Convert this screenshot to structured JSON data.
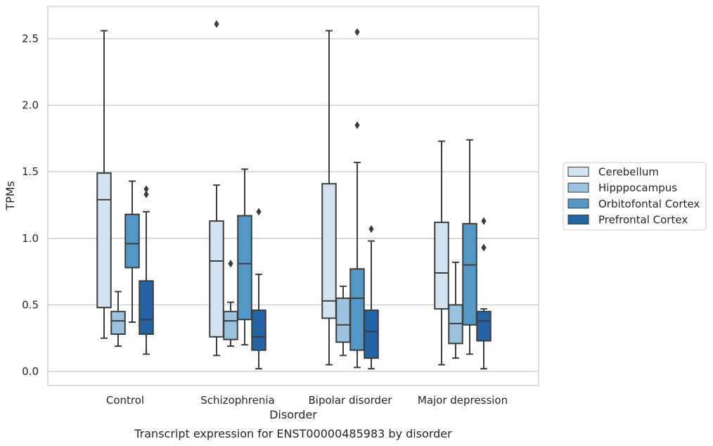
{
  "chart_data": {
    "type": "box",
    "caption": "Transcript expression for ENST00000485983 by disorder",
    "xlabel": "Disorder",
    "ylabel": "TPMs",
    "ylim": [
      -0.1,
      2.75
    ],
    "yticks": [
      0.0,
      0.5,
      1.0,
      1.5,
      2.0,
      2.5
    ],
    "ytick_labels": [
      "0.0",
      "0.5",
      "1.0",
      "1.5",
      "2.0",
      "2.5"
    ],
    "grid": true,
    "legend_position": "right",
    "categories": [
      "Control",
      "Schizophrenia",
      "Bipolar disorder",
      "Major depression"
    ],
    "series": [
      {
        "name": "Cerebellum",
        "color": "#d4e3f1",
        "boxes": [
          {
            "whislo": 0.25,
            "q1": 0.48,
            "med": 1.29,
            "q3": 1.49,
            "whishi": 2.56,
            "fliers": []
          },
          {
            "whislo": 0.12,
            "q1": 0.26,
            "med": 0.83,
            "q3": 1.13,
            "whishi": 1.4,
            "fliers": [
              2.61
            ]
          },
          {
            "whislo": 0.05,
            "q1": 0.4,
            "med": 0.53,
            "q3": 1.41,
            "whishi": 2.56,
            "fliers": []
          },
          {
            "whislo": 0.05,
            "q1": 0.47,
            "med": 0.74,
            "q3": 1.12,
            "whishi": 1.73,
            "fliers": []
          }
        ]
      },
      {
        "name": "Hipppocampus",
        "color": "#99c3de",
        "boxes": [
          {
            "whislo": 0.19,
            "q1": 0.28,
            "med": 0.38,
            "q3": 0.45,
            "whishi": 0.6,
            "fliers": []
          },
          {
            "whislo": 0.19,
            "q1": 0.24,
            "med": 0.38,
            "q3": 0.45,
            "whishi": 0.52,
            "fliers": [
              0.81
            ]
          },
          {
            "whislo": 0.12,
            "q1": 0.22,
            "med": 0.35,
            "q3": 0.55,
            "whishi": 0.64,
            "fliers": []
          },
          {
            "whislo": 0.1,
            "q1": 0.21,
            "med": 0.36,
            "q3": 0.5,
            "whishi": 0.82,
            "fliers": []
          }
        ]
      },
      {
        "name": "Orbitofontal Cortex",
        "color": "#5498c8",
        "boxes": [
          {
            "whislo": 0.37,
            "q1": 0.78,
            "med": 0.96,
            "q3": 1.18,
            "whishi": 1.43,
            "fliers": []
          },
          {
            "whislo": 0.2,
            "q1": 0.39,
            "med": 0.81,
            "q3": 1.17,
            "whishi": 1.52,
            "fliers": []
          },
          {
            "whislo": 0.03,
            "q1": 0.16,
            "med": 0.55,
            "q3": 0.77,
            "whishi": 1.57,
            "fliers": [
              1.85,
              2.55
            ]
          },
          {
            "whislo": 0.13,
            "q1": 0.35,
            "med": 0.8,
            "q3": 1.11,
            "whishi": 1.74,
            "fliers": []
          }
        ]
      },
      {
        "name": "Prefrontal Cortex",
        "color": "#2463a4",
        "boxes": [
          {
            "whislo": 0.13,
            "q1": 0.28,
            "med": 0.39,
            "q3": 0.68,
            "whishi": 1.2,
            "fliers": [
              1.33,
              1.37
            ]
          },
          {
            "whislo": 0.02,
            "q1": 0.16,
            "med": 0.26,
            "q3": 0.46,
            "whishi": 0.73,
            "fliers": [
              1.2
            ]
          },
          {
            "whislo": 0.02,
            "q1": 0.1,
            "med": 0.3,
            "q3": 0.46,
            "whishi": 0.98,
            "fliers": [
              1.07
            ]
          },
          {
            "whislo": 0.02,
            "q1": 0.23,
            "med": 0.38,
            "q3": 0.45,
            "whishi": 0.47,
            "fliers": [
              0.93,
              1.13
            ]
          }
        ]
      }
    ]
  }
}
